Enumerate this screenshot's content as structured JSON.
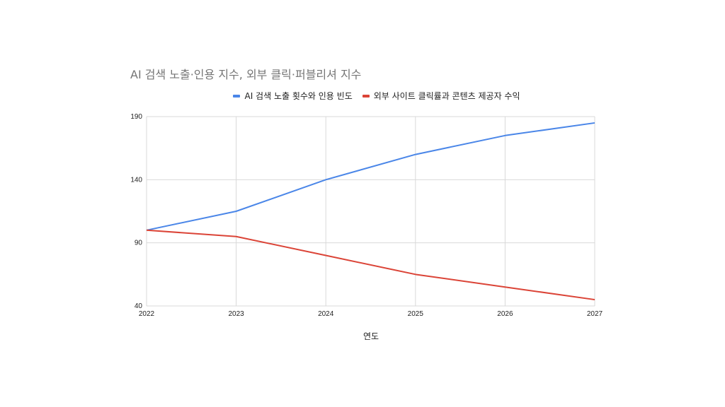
{
  "chart_data": {
    "type": "line",
    "title": "AI 검색 노출·인용 지수, 외부 클릭·퍼블리셔 지수",
    "xlabel": "연도",
    "ylabel": "",
    "x": [
      "2022",
      "2023",
      "2024",
      "2025",
      "2026",
      "2027"
    ],
    "ylim": [
      40,
      190
    ],
    "yticks": [
      "40",
      "90",
      "140",
      "190"
    ],
    "grid": true,
    "legend_position": "top",
    "series": [
      {
        "name": "AI 검색 노출 횟수와 인용 빈도",
        "color": "#4a86e8",
        "values": [
          100,
          115,
          140,
          160,
          175,
          185
        ]
      },
      {
        "name": "외부 사이트 클릭률과 콘텐츠 제공자 수익",
        "color": "#db4437",
        "values": [
          100,
          95,
          80,
          65,
          55,
          45
        ]
      }
    ]
  }
}
